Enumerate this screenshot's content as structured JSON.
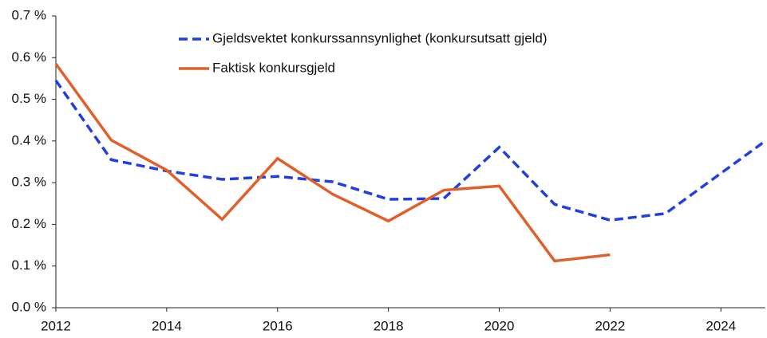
{
  "chart_data": {
    "type": "line",
    "series": [
      {
        "name": "Gjeldsvektet konkurssannsynlighet (konkursutsatt gjeld)",
        "color": "#1f3fe0",
        "dash": true,
        "x": [
          2012,
          2013,
          2014,
          2015,
          2016,
          2017,
          2018,
          2019,
          2020,
          2021,
          2022,
          2023,
          2024.75
        ],
        "values": [
          0.545,
          0.355,
          0.328,
          0.308,
          0.315,
          0.302,
          0.26,
          0.262,
          0.385,
          0.248,
          0.21,
          0.226,
          0.395
        ]
      },
      {
        "name": "Faktisk konkursgjeld",
        "color": "#e0602a",
        "dash": false,
        "x": [
          2012,
          2013,
          2014,
          2015,
          2016,
          2017,
          2018,
          2019,
          2020,
          2021,
          2022
        ],
        "values": [
          0.585,
          0.402,
          0.33,
          0.212,
          0.358,
          0.272,
          0.208,
          0.282,
          0.292,
          0.112,
          0.127
        ]
      }
    ],
    "xlim": [
      2012,
      2024.8
    ],
    "xticks": [
      2012,
      2014,
      2016,
      2018,
      2020,
      2022,
      2024
    ],
    "ylim": [
      0,
      0.7
    ],
    "yticks": [
      {
        "value": 0,
        "label": "0.0 %"
      },
      {
        "value": 0.1,
        "label": "0.1 %"
      },
      {
        "value": 0.2,
        "label": "0.2 %"
      },
      {
        "value": 0.3,
        "label": "0.3 %"
      },
      {
        "value": 0.4,
        "label": "0.4 %"
      },
      {
        "value": 0.5,
        "label": "0.5 %"
      },
      {
        "value": 0.6,
        "label": "0.6 %"
      },
      {
        "value": 0.7,
        "label": "0.7 %"
      }
    ],
    "grid": false
  }
}
